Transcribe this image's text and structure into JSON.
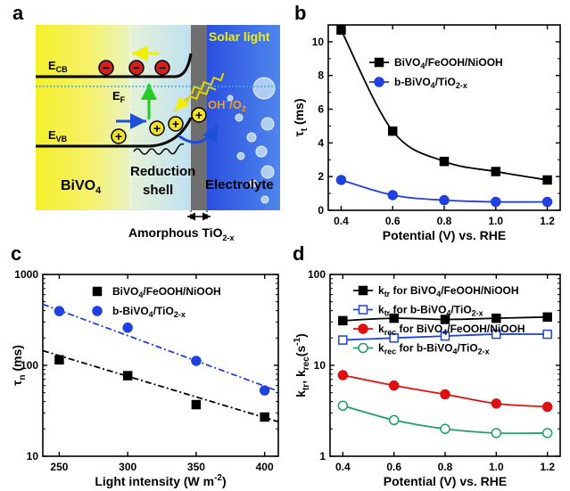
{
  "panel_letters": {
    "a": "a",
    "b": "b",
    "c": "c",
    "d": "d"
  },
  "schematic": {
    "e_cb": "E",
    "e_cb_sub": "CB",
    "e_f": "E",
    "e_f_sub": "F",
    "e_vb": "E",
    "e_vb_sub": "VB",
    "bivo4": "BiVO",
    "bivo4_sub": "4",
    "reduction": "Reduction",
    "shell": "shell",
    "electrolyte": "Electrolyte",
    "solar_light": "Solar light",
    "oh_o2": "OH",
    "oh_o2_tail": "/O",
    "oh_o2_sub": "2",
    "amorphous": "Amorphous  TiO",
    "amorphous_sub": "2-x",
    "hole_symbol": "+",
    "electron_symbol": "−",
    "colors": {
      "left": "#f5f230",
      "shell": "#cfe8f5",
      "tio2": "#6f6f6f",
      "electrolyte": "#3b62d8",
      "electron": "#d22020",
      "hole": "#f0e030",
      "arrow_blue": "#1f4fd6",
      "arrow_green": "#22cc22",
      "arrow_yellow": "#f0f000",
      "wave": "#e6d400",
      "oh_text": "#f0a020"
    }
  },
  "chart_data": [
    {
      "panel": "b",
      "type": "line",
      "ylabel": "τ",
      "ylabel_sub": "t",
      "ylabel_unit": " (ms)",
      "xlabel": "Potential (V) vs. RHE",
      "x": [
        0.4,
        0.6,
        0.8,
        1.0,
        1.2
      ],
      "xlim": [
        0.35,
        1.25
      ],
      "ylim": [
        0,
        11
      ],
      "xticks": [
        "0.4",
        "0.6",
        "0.8",
        "1.0",
        "1.2"
      ],
      "yticks": [
        "0",
        "2",
        "4",
        "6",
        "8",
        "10"
      ],
      "series": [
        {
          "name": "BiVO",
          "name_sub": "4",
          "name_tail": "/FeOOH/NiOOH",
          "values": [
            10.7,
            4.7,
            2.9,
            2.3,
            1.8
          ],
          "color": "#000000",
          "marker": "square",
          "fill": true
        },
        {
          "name": "b-BiVO",
          "name_sub": "4",
          "name_tail": "/TiO",
          "name_sub2": "2-x",
          "values": [
            1.8,
            0.9,
            0.6,
            0.5,
            0.5
          ],
          "color": "#2040e0",
          "marker": "circle",
          "fill": true
        }
      ]
    },
    {
      "panel": "c",
      "type": "scatter",
      "scale": "log",
      "ylabel": "τ",
      "ylabel_sub": "n",
      "ylabel_unit": " (ms)",
      "xlabel": "Light intensity (W m",
      "xlabel_sup": "-2",
      "xlabel_tail": ")",
      "x": [
        250,
        300,
        350,
        400
      ],
      "xlim": [
        238,
        410
      ],
      "ylim": [
        10,
        1000
      ],
      "xticks": [
        "250",
        "300",
        "350",
        "400"
      ],
      "yticks": [
        "10",
        "100",
        "1000"
      ],
      "series": [
        {
          "name": "BiVO",
          "name_sub": "4",
          "name_tail": "/FeOOH/NiOOH",
          "values": [
            115,
            77,
            37,
            27
          ],
          "fit": [
            145,
            24
          ],
          "color": "#000000",
          "marker": "square"
        },
        {
          "name": "b-BiVO",
          "name_sub": "4",
          "name_tail": "/TiO",
          "name_sub2": "2-x",
          "values": [
            395,
            260,
            112,
            53
          ],
          "fit": [
            470,
            52
          ],
          "color": "#2040e0",
          "marker": "circle"
        }
      ]
    },
    {
      "panel": "d",
      "type": "line",
      "scale": "log",
      "ylabel": "k",
      "ylabel_sub1": "tr",
      "ylabel_mid": ", k",
      "ylabel_sub2": "rec",
      "ylabel_unit": "(s",
      "ylabel_sup": "-1",
      "ylabel_end": ")",
      "xlabel": "Potential (V) vs. RHE",
      "x": [
        0.4,
        0.6,
        0.8,
        1.0,
        1.2
      ],
      "xlim": [
        0.35,
        1.25
      ],
      "ylim": [
        1,
        100
      ],
      "xticks": [
        "0.4",
        "0.6",
        "0.8",
        "1.0",
        "1.2"
      ],
      "yticks": [
        "1",
        "10",
        "100"
      ],
      "series": [
        {
          "prefix": "k",
          "prefix_sub": "tr",
          "name": " for BiVO",
          "name_sub": "4",
          "name_tail": "/FeOOH/NiOOH",
          "values": [
            31,
            33,
            32,
            33,
            34
          ],
          "color": "#000000",
          "marker": "square",
          "fill": true
        },
        {
          "prefix": "k",
          "prefix_sub": "tr",
          "name": " for b-BiVO",
          "name_sub": "4",
          "name_tail": "/TiO",
          "name_sub2": "2-x",
          "values": [
            19,
            20,
            21,
            22,
            22
          ],
          "color": "#2040e0",
          "marker": "square",
          "fill": false
        },
        {
          "prefix": "k",
          "prefix_sub": "rec",
          "name": " for BiVO",
          "name_sub": "4",
          "name_tail": "/FeOOH/NiOOH",
          "values": [
            7.8,
            6.0,
            4.8,
            3.8,
            3.5
          ],
          "color": "#e01010",
          "marker": "circle",
          "fill": true
        },
        {
          "prefix": "k",
          "prefix_sub": "rec",
          "name": " for b-BiVO",
          "name_sub": "4",
          "name_tail": "/TiO",
          "name_sub2": "2-x",
          "values": [
            3.6,
            2.5,
            2.0,
            1.8,
            1.8
          ],
          "color": "#20a060",
          "marker": "circle",
          "fill": false
        }
      ]
    }
  ]
}
